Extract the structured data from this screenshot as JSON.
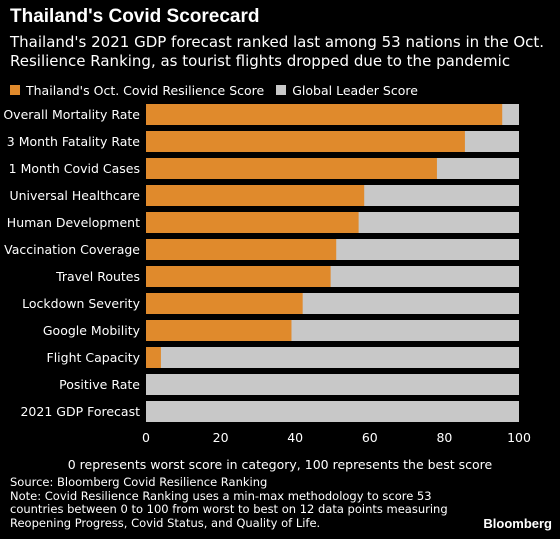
{
  "title": "Thailand's Covid Scorecard",
  "subtitle": "Thailand's 2021 GDP forecast ranked last among 53 nations in the Oct. Resilience Ranking, as tourist flights dropped due to the pandemic",
  "legend": {
    "thailand_label": "Thailand's Oct. Covid Resilience Score",
    "leader_label": "Global Leader Score"
  },
  "colors": {
    "thailand": "#e08a2c",
    "leader": "#c8c8c8",
    "background": "#000000"
  },
  "chart_data": {
    "type": "bar",
    "orientation": "horizontal",
    "stacked_against_max": true,
    "categories": [
      "Overall Mortality Rate",
      "3 Month Fatality Rate",
      "1 Month Covid Cases",
      "Universal Healthcare",
      "Human Development",
      "Vaccination Coverage",
      "Travel Routes",
      "Lockdown Severity",
      "Google Mobility",
      "Flight Capacity",
      "Positive Rate",
      "2021 GDP Forecast"
    ],
    "series": [
      {
        "name": "Thailand's Oct. Covid Resilience Score",
        "values": [
          95.5,
          85.5,
          78,
          58.5,
          57,
          51,
          49.5,
          42,
          39,
          4,
          0,
          0
        ]
      },
      {
        "name": "Global Leader Score",
        "values": [
          100,
          100,
          100,
          100,
          100,
          100,
          100,
          100,
          100,
          100,
          100,
          100
        ]
      }
    ],
    "xlim": [
      0,
      100
    ],
    "xticks": [
      0,
      20,
      40,
      60,
      80,
      100
    ],
    "xlabel": "0 represents worst score in category, 100 represents the best score",
    "ylabel": "",
    "legend_position": "top-left",
    "grid": false
  },
  "source": "Source: Bloomberg Covid Resilience Ranking",
  "note": "Note: Covid Resilience Ranking uses a min-max methodology to score 53 countries between 0 to 100 from worst to best on 12 data points measuring Reopening Progress, Covid Status, and Quality of Life.",
  "brand": "Bloomberg"
}
